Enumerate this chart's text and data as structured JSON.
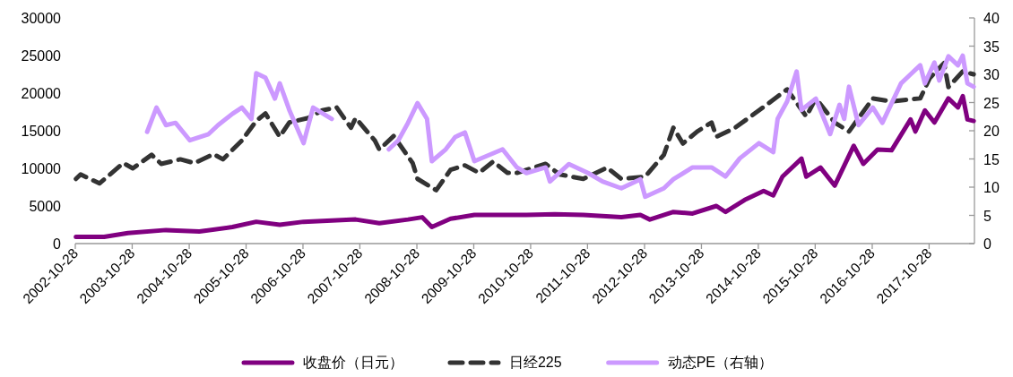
{
  "chart_data": {
    "type": "line",
    "xlim": [
      "2002-10-28",
      "2018-08-15"
    ],
    "xticks": [
      "2002-10-28",
      "2003-10-28",
      "2004-10-28",
      "2005-10-28",
      "2006-10-28",
      "2007-10-28",
      "2008-10-28",
      "2009-10-28",
      "2010-10-28",
      "2011-10-28",
      "2012-10-28",
      "2013-10-28",
      "2014-10-28",
      "2015-10-28",
      "2016-10-28",
      "2017-10-28"
    ],
    "ylim": [
      0,
      30000
    ],
    "yticks": [
      0,
      5000,
      10000,
      15000,
      20000,
      25000,
      30000
    ],
    "y2lim": [
      0,
      40
    ],
    "y2ticks": [
      0,
      5,
      10,
      15,
      20,
      25,
      30,
      35,
      40
    ],
    "grid": false,
    "legend": "bottom",
    "series": [
      {
        "name": "收盘价（日元）",
        "color": "#800080",
        "line_style": "solid",
        "x": [
          "2002-11",
          "2003-05",
          "2003-10",
          "2004-06",
          "2005-01",
          "2005-08",
          "2006-01",
          "2006-06",
          "2006-11",
          "2007-06",
          "2007-10",
          "2008-03",
          "2008-09",
          "2008-12",
          "2009-02",
          "2009-06",
          "2009-11",
          "2010-05",
          "2010-10",
          "2011-04",
          "2011-10",
          "2012-06",
          "2012-10",
          "2012-12",
          "2013-05",
          "2013-09",
          "2014-02",
          "2014-04",
          "2014-08",
          "2014-12",
          "2015-02",
          "2015-04",
          "2015-08",
          "2015-09",
          "2015-12",
          "2016-03",
          "2016-07",
          "2016-09",
          "2016-12",
          "2017-03",
          "2017-07",
          "2017-08",
          "2017-10",
          "2017-12",
          "2018-03",
          "2018-05",
          "2018-06",
          "2018-07",
          "2018-08-10"
        ],
        "values": [
          900,
          900,
          1400,
          1800,
          1600,
          2200,
          2900,
          2500,
          2900,
          3100,
          3200,
          2700,
          3200,
          3500,
          2200,
          3300,
          3800,
          3800,
          3800,
          3900,
          3800,
          3500,
          3800,
          3200,
          4200,
          4000,
          5000,
          4200,
          5800,
          7000,
          6400,
          8900,
          11300,
          8900,
          10100,
          7700,
          13000,
          10600,
          12500,
          12400,
          16500,
          14900,
          17700,
          16100,
          19300,
          18100,
          19600,
          16500,
          16300
        ]
      },
      {
        "name": "日经225",
        "color": "#333333",
        "line_style": "dashed",
        "x": [
          "2002-11",
          "2002-12",
          "2003-04",
          "2003-09",
          "2003-11",
          "2004-03",
          "2004-05",
          "2004-09",
          "2004-12",
          "2005-04",
          "2005-06",
          "2005-10",
          "2006-01",
          "2006-03",
          "2006-06",
          "2006-08",
          "2006-12",
          "2007-03",
          "2007-06",
          "2007-09",
          "2007-10",
          "2008-02",
          "2008-03",
          "2008-06",
          "2008-10",
          "2008-11",
          "2009-03",
          "2009-06",
          "2009-09",
          "2009-12",
          "2010-03",
          "2010-06",
          "2010-08",
          "2011-02",
          "2011-05",
          "2011-10",
          "2012-03",
          "2012-06",
          "2012-11",
          "2013-03",
          "2013-05",
          "2013-07",
          "2013-10",
          "2014-01",
          "2014-02",
          "2014-06",
          "2014-11",
          "2015-05",
          "2015-09",
          "2015-11",
          "2016-03",
          "2016-06",
          "2016-11",
          "2017-03",
          "2017-09",
          "2017-11",
          "2018-02",
          "2018-03",
          "2018-06",
          "2018-08-10"
        ],
        "values": [
          8600,
          9200,
          8000,
          10700,
          10000,
          11800,
          10600,
          11200,
          10700,
          11900,
          11200,
          13700,
          16300,
          17300,
          14200,
          16100,
          16700,
          17700,
          18100,
          15400,
          16700,
          13700,
          12500,
          14300,
          10700,
          8600,
          7100,
          9800,
          10400,
          9400,
          10900,
          9400,
          9400,
          10600,
          9200,
          8600,
          10100,
          8600,
          8900,
          11800,
          15400,
          13300,
          14900,
          16100,
          14200,
          15400,
          17700,
          20500,
          16900,
          19300,
          16100,
          14900,
          19300,
          18900,
          19300,
          22000,
          24000,
          20800,
          22900,
          22500
        ]
      },
      {
        "name": "动态PE（右轴）",
        "color": "#cc99ff",
        "line_style": "solid",
        "axis": "y2",
        "x": [
          "2004-02",
          "2004-04",
          "2004-06",
          "2004-08",
          "2004-11",
          "2005-03",
          "2005-05",
          "2005-08",
          "2005-10",
          "2005-12",
          "2006-01",
          "2006-03",
          "2006-05",
          "2006-06",
          "2006-08",
          "2006-11",
          "2007-01",
          "2007-05",
          "2007-10",
          "2008-05",
          "2008-07",
          "2008-09",
          "2008-11",
          "2009-01",
          "2009-02",
          "2009-05",
          "2009-07",
          "2009-09",
          "2009-11",
          "2010-05",
          "2010-08",
          "2010-10",
          "2011-02",
          "2011-03",
          "2011-07",
          "2011-11",
          "2012-02",
          "2012-06",
          "2012-10",
          "2012-11",
          "2013-03",
          "2013-05",
          "2013-09",
          "2014-01",
          "2014-04",
          "2014-07",
          "2014-11",
          "2015-02",
          "2015-03",
          "2015-05",
          "2015-07",
          "2015-08",
          "2015-11",
          "2016-02",
          "2016-04",
          "2016-05",
          "2016-06",
          "2016-08",
          "2016-11",
          "2017-01",
          "2017-05",
          "2017-07",
          "2017-09",
          "2017-10",
          "2017-12",
          "2018-01",
          "2018-03",
          "2018-05",
          "2018-06",
          "2018-07",
          "2018-08-10"
        ],
        "values": [
          19.8,
          24.1,
          21.0,
          21.4,
          18.3,
          19.4,
          21.0,
          23.0,
          24.1,
          22.1,
          30.2,
          29.4,
          25.7,
          28.4,
          23.7,
          17.8,
          24.1,
          22.1,
          null,
          16.7,
          18.3,
          21.4,
          24.9,
          22.1,
          14.6,
          16.7,
          18.9,
          19.7,
          14.6,
          16.7,
          13.5,
          12.5,
          13.5,
          11.0,
          14.1,
          12.5,
          11.0,
          9.8,
          11.4,
          8.3,
          9.8,
          11.4,
          13.5,
          13.5,
          11.9,
          15.1,
          17.8,
          16.2,
          22.1,
          25.2,
          30.5,
          23.7,
          25.7,
          19.4,
          24.6,
          22.1,
          27.8,
          21.0,
          24.1,
          21.4,
          28.4,
          30.0,
          31.6,
          28.4,
          32.1,
          28.9,
          33.2,
          31.6,
          33.3,
          28.4,
          27.8
        ]
      }
    ]
  }
}
